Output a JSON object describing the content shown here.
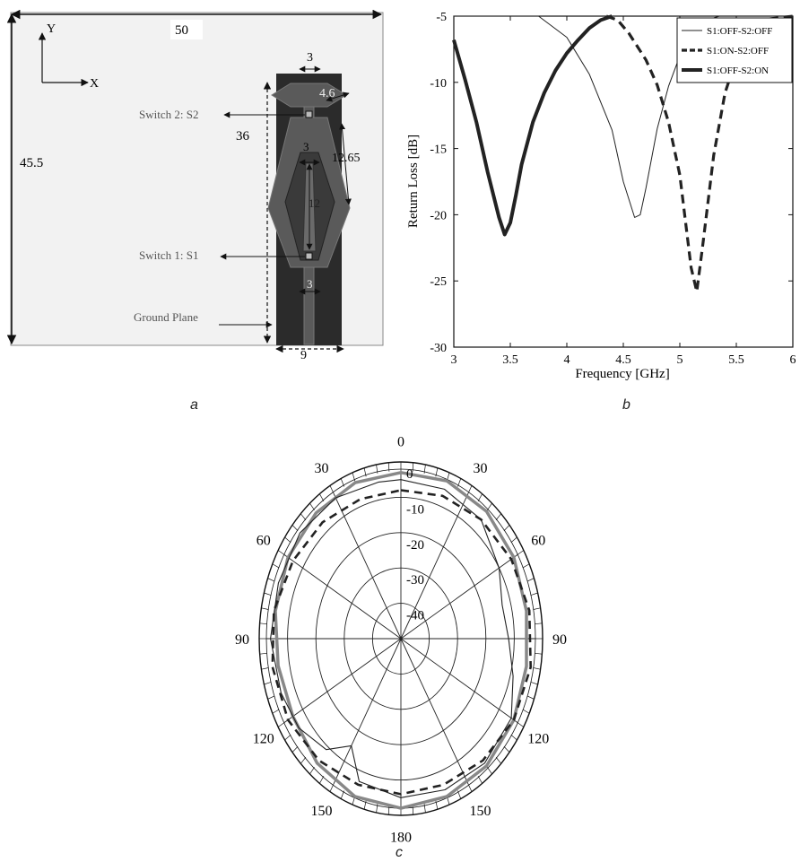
{
  "panel_a": {
    "label": "a",
    "dims": {
      "width": "50",
      "height": "45.5",
      "feed_length": "36",
      "top_width": "3",
      "edge": "4.6",
      "side": "12.65",
      "inner_top": "3",
      "inner_len": "12",
      "feed_width": "3",
      "ground_width": "9"
    },
    "axis_y": "Y",
    "axis_x": "X",
    "callouts": {
      "switch2": "Switch 2: S2",
      "switch1": "Switch 1: S1",
      "ground": "Ground Plane"
    },
    "colors": {
      "substrate": "#f2f2f2",
      "ground": "#2b2b2b",
      "patch": "#5a5a5a"
    }
  },
  "panel_b_label": "b",
  "panel_c_label": "c",
  "chart_data": [
    {
      "type": "line",
      "xlabel": "Frequency [GHz]",
      "ylabel": "Return Loss [dB]",
      "xlim": [
        3,
        6
      ],
      "ylim": [
        -30,
        -5
      ],
      "xticks": [
        "3",
        "3.5",
        "4",
        "4.5",
        "5",
        "5.5",
        "6"
      ],
      "yticks": [
        "-5",
        "-10",
        "-15",
        "-20",
        "-25",
        "-30"
      ],
      "legend_position": "top-right",
      "series": [
        {
          "name": "S1:OFF-S2:OFF",
          "style": "thin-solid",
          "x": [
            3.0,
            3.5,
            3.75,
            4.0,
            4.2,
            4.4,
            4.5,
            4.6,
            4.65,
            4.7,
            4.8,
            4.9,
            5.0,
            5.1,
            5.2,
            5.35
          ],
          "y": [
            -5,
            -5,
            -5,
            -6.6,
            -9.4,
            -13.6,
            -17.5,
            -20.2,
            -20.0,
            -18.0,
            -13.5,
            -10.3,
            -8.0,
            -6.4,
            -5.4,
            -5
          ]
        },
        {
          "name": "S1:ON-S2:OFF",
          "style": "thick-dashed",
          "x": [
            4.35,
            4.45,
            4.55,
            4.7,
            4.8,
            4.9,
            5.0,
            5.05,
            5.1,
            5.15,
            5.2,
            5.3,
            5.4,
            5.5,
            5.6,
            5.8,
            6.0
          ],
          "y": [
            -5,
            -5.3,
            -6.3,
            -8.3,
            -10.2,
            -13.0,
            -17.0,
            -20.5,
            -24.0,
            -25.8,
            -22.5,
            -15.5,
            -10.8,
            -8.2,
            -6.6,
            -5.2,
            -5
          ]
        },
        {
          "name": "S1:OFF-S2:ON",
          "style": "thick-solid",
          "x": [
            3.0,
            3.1,
            3.2,
            3.3,
            3.4,
            3.45,
            3.5,
            3.55,
            3.6,
            3.7,
            3.8,
            3.9,
            4.0,
            4.1,
            4.2,
            4.3,
            4.4
          ],
          "y": [
            -6.8,
            -9.8,
            -13.0,
            -16.8,
            -20.2,
            -21.5,
            -20.6,
            -18.5,
            -16.2,
            -13.0,
            -10.8,
            -9.1,
            -7.8,
            -6.8,
            -5.9,
            -5.3,
            -5
          ]
        }
      ]
    },
    {
      "type": "polar",
      "angle_labels": [
        "0",
        "30",
        "60",
        "90",
        "120",
        "150",
        "180",
        "150",
        "120",
        "90",
        "60",
        "30"
      ],
      "radial_tick_labels": [
        "0",
        "-10",
        "-20",
        "-30",
        "-40"
      ],
      "rlim": [
        -50,
        0
      ],
      "series": [
        {
          "style": "thick-gray-solid",
          "theta_deg": [
            0,
            20,
            40,
            60,
            80,
            100,
            120,
            140,
            160,
            180,
            200,
            220,
            240,
            260,
            280,
            300,
            320,
            340
          ],
          "r_db": [
            -3,
            -2.5,
            -3,
            -4,
            -5,
            -5,
            -4,
            -3,
            -2.5,
            -2,
            -2.5,
            -4,
            -6,
            -6,
            -5,
            -4,
            -3.5,
            -3
          ]
        },
        {
          "style": "thick-black-dashed",
          "theta_deg": [
            0,
            20,
            40,
            60,
            80,
            100,
            120,
            140,
            160,
            180,
            200,
            220,
            240,
            260,
            280,
            300,
            320,
            340
          ],
          "r_db": [
            -8,
            -7,
            -6,
            -5,
            -4,
            -3.5,
            -4,
            -5,
            -6,
            -6,
            -6,
            -5,
            -4,
            -4,
            -4.5,
            -6,
            -7,
            -8
          ]
        },
        {
          "style": "thin-black-solid",
          "theta_deg": [
            0,
            20,
            40,
            60,
            75,
            90,
            105,
            120,
            140,
            160,
            180,
            200,
            210,
            220,
            235,
            250,
            270,
            290,
            310,
            330,
            350
          ],
          "r_db": [
            -5,
            -5,
            -6,
            -10,
            -13,
            -12,
            -9,
            -5,
            -4,
            -4.5,
            -5,
            -7,
            -15,
            -9,
            -6,
            -5,
            -4,
            -4,
            -3.5,
            -4,
            -5
          ]
        }
      ]
    }
  ]
}
